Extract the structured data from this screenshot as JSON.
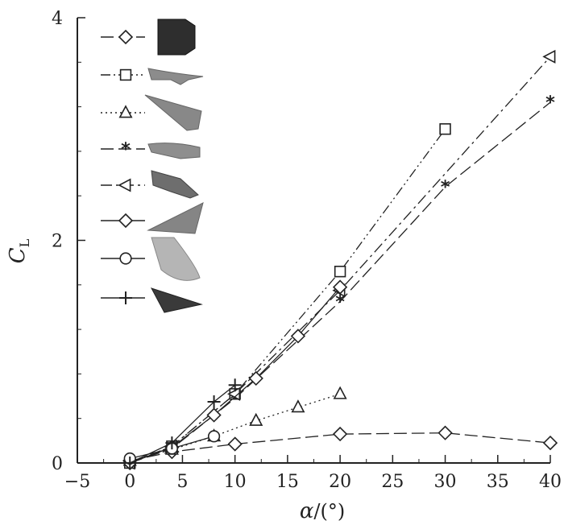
{
  "chart_data": {
    "type": "line",
    "title": "",
    "xlabel": "α/(°)",
    "ylabel": "C_L",
    "xlabel_parts": {
      "var": "α",
      "unit": "/(°)"
    },
    "ylabel_parts": {
      "var": "C",
      "sub": "L"
    },
    "xlim": [
      -5,
      40
    ],
    "ylim": [
      0,
      4
    ],
    "xticks": [
      -5,
      0,
      5,
      10,
      15,
      20,
      25,
      30,
      35,
      40
    ],
    "yticks": [
      0,
      2,
      4
    ],
    "grid": false,
    "legend_placement": "top-left",
    "series": [
      {
        "marker": "diamond",
        "dash": "long-dash",
        "icon": "capsule-icon",
        "x": [
          0,
          4,
          10,
          20,
          30,
          40
        ],
        "y": [
          0.02,
          0.1,
          0.17,
          0.26,
          0.27,
          0.18
        ]
      },
      {
        "marker": "square",
        "dash": "dash-dot-dot",
        "icon": "shuttle-orbiter-icon",
        "x": [
          0,
          4,
          10,
          20,
          30
        ],
        "y": [
          0.0,
          0.15,
          0.62,
          1.72,
          3.0
        ]
      },
      {
        "marker": "triangle-up",
        "dash": "dotted",
        "icon": "waverider-icon",
        "x": [
          0,
          4,
          8,
          12,
          16,
          20
        ],
        "y": [
          0.02,
          0.12,
          0.24,
          0.38,
          0.5,
          0.62
        ]
      },
      {
        "marker": "asterisk",
        "dash": "long-dash",
        "icon": "lifting-body-icon",
        "x": [
          0,
          4,
          10,
          20,
          30,
          40
        ],
        "y": [
          0.0,
          0.13,
          0.58,
          1.45,
          2.48,
          3.24
        ]
      },
      {
        "marker": "triangle-left",
        "dash": "dash-dot",
        "icon": "space-plane-icon",
        "x": [
          0,
          4,
          10,
          20,
          40
        ],
        "y": [
          0.0,
          0.15,
          0.62,
          1.55,
          3.65
        ]
      },
      {
        "marker": "diamond",
        "dash": "solid",
        "icon": "delta-wing-icon",
        "x": [
          0,
          4,
          8,
          12,
          16,
          20
        ],
        "y": [
          0.0,
          0.14,
          0.43,
          0.76,
          1.14,
          1.58
        ]
      },
      {
        "marker": "circle",
        "dash": "solid",
        "icon": "blunt-cone-icon",
        "x": [
          0,
          4,
          8
        ],
        "y": [
          0.04,
          0.13,
          0.24
        ]
      },
      {
        "marker": "plus",
        "dash": "solid",
        "icon": "sharp-cone-icon",
        "x": [
          0,
          4,
          8,
          10
        ],
        "y": [
          0.0,
          0.18,
          0.55,
          0.7
        ]
      }
    ]
  }
}
